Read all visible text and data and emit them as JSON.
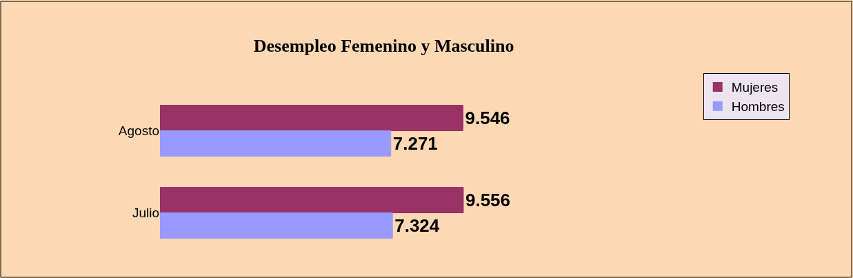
{
  "chart_data": {
    "type": "bar",
    "orientation": "horizontal",
    "title": "Desempleo Femenino y Masculino",
    "categories": [
      "Agosto",
      "Julio"
    ],
    "series": [
      {
        "name": "Mujeres",
        "color": "#993366",
        "values": [
          9.546,
          9.556
        ]
      },
      {
        "name": "Hombres",
        "color": "#9999ff",
        "values": [
          7.271,
          7.324
        ]
      }
    ],
    "data_labels": true,
    "legend": "right"
  }
}
